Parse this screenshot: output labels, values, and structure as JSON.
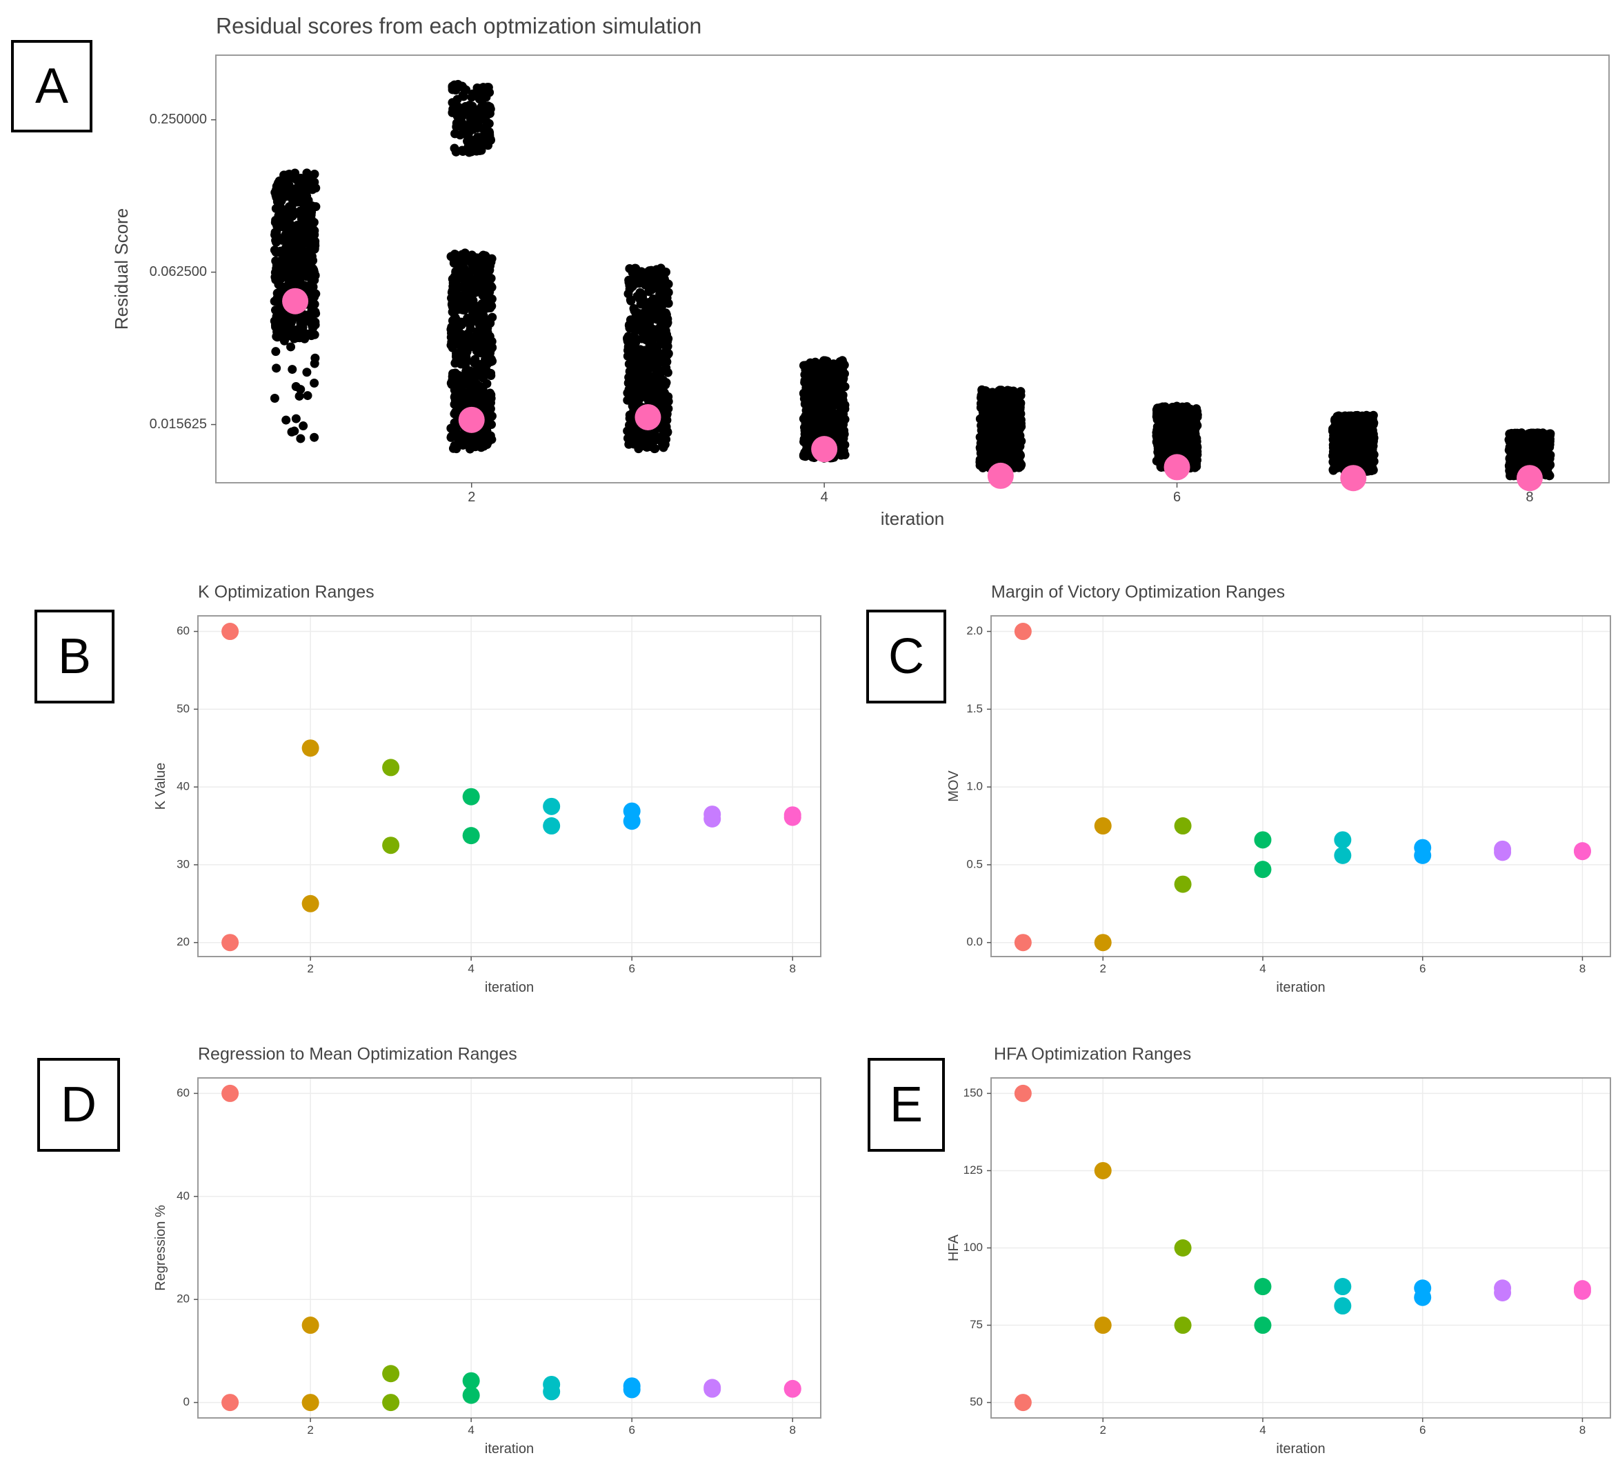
{
  "panel_labels": [
    "A",
    "B",
    "C",
    "D",
    "E"
  ],
  "colors": {
    "iterations": [
      "#F8766D",
      "#CD9600",
      "#7CAE00",
      "#00BE67",
      "#00BFC4",
      "#00A9FF",
      "#C77CFF",
      "#FF61CC"
    ],
    "jitter_points": "#000000",
    "best_point": "#FF69B4"
  },
  "chart_data": [
    {
      "id": "A",
      "type": "scatter",
      "title": "Residual scores from each optmization simulation",
      "xlabel": "iteration",
      "ylabel": "Residual Score",
      "y_scale": "log",
      "xlim": [
        0.55,
        8.45
      ],
      "ylim": [
        0.0092,
        0.45
      ],
      "xticks": [
        2,
        4,
        6,
        8
      ],
      "yticks": [
        0.015625,
        0.0625,
        0.25
      ],
      "ytick_labels": [
        "0.015625",
        "0.062500",
        "0.250000"
      ],
      "grid": false,
      "jitter_ranges": [
        {
          "x": 1,
          "low": 0.0135,
          "high": 0.155,
          "gap_below": 0.034
        },
        {
          "x": 2,
          "low": 0.0125,
          "high": 0.075,
          "upper_cluster": [
            0.185,
            0.345
          ]
        },
        {
          "x": 3,
          "low": 0.0125,
          "high": 0.065
        },
        {
          "x": 4,
          "low": 0.0115,
          "high": 0.028
        },
        {
          "x": 5,
          "low": 0.0105,
          "high": 0.0215
        },
        {
          "x": 6,
          "low": 0.0105,
          "high": 0.0185
        },
        {
          "x": 7,
          "low": 0.0102,
          "high": 0.017
        },
        {
          "x": 8,
          "low": 0.0098,
          "high": 0.0145
        }
      ],
      "best": [
        {
          "x": 1,
          "y": 0.048
        },
        {
          "x": 2,
          "y": 0.0163
        },
        {
          "x": 3,
          "y": 0.0167
        },
        {
          "x": 4,
          "y": 0.0125
        },
        {
          "x": 5,
          "y": 0.0098
        },
        {
          "x": 6,
          "y": 0.0106
        },
        {
          "x": 7,
          "y": 0.0096
        },
        {
          "x": 8,
          "y": 0.0096
        }
      ]
    },
    {
      "id": "B",
      "type": "scatter",
      "title": "K Optimization Ranges",
      "xlabel": "iteration",
      "ylabel": "K Value",
      "xlim": [
        0.6,
        8.35
      ],
      "ylim": [
        18.2,
        62
      ],
      "xticks": [
        2,
        4,
        6,
        8
      ],
      "yticks": [
        20,
        30,
        40,
        50,
        60
      ],
      "grid": true,
      "points": [
        {
          "x": 1,
          "low": 20,
          "high": 60
        },
        {
          "x": 2,
          "low": 25,
          "high": 45
        },
        {
          "x": 3,
          "low": 32.5,
          "high": 42.5
        },
        {
          "x": 4,
          "low": 33.75,
          "high": 38.75
        },
        {
          "x": 5,
          "low": 35,
          "high": 37.5
        },
        {
          "x": 6,
          "low": 35.6,
          "high": 36.9
        },
        {
          "x": 7,
          "low": 35.9,
          "high": 36.5
        },
        {
          "x": 8,
          "low": 36.1,
          "high": 36.4
        }
      ]
    },
    {
      "id": "C",
      "type": "scatter",
      "title": "Margin of Victory Optimization Ranges",
      "xlabel": "iteration",
      "ylabel": "MOV",
      "xlim": [
        0.6,
        8.35
      ],
      "ylim": [
        -0.09,
        2.1
      ],
      "xticks": [
        2,
        4,
        6,
        8
      ],
      "yticks": [
        0.0,
        0.5,
        1.0,
        1.5,
        2.0
      ],
      "ytick_labels": [
        "0.0",
        "0.5",
        "1.0",
        "1.5",
        "2.0"
      ],
      "grid": true,
      "points": [
        {
          "x": 1,
          "low": 0,
          "high": 2
        },
        {
          "x": 2,
          "low": 0,
          "high": 0.75
        },
        {
          "x": 3,
          "low": 0.375,
          "high": 0.75
        },
        {
          "x": 4,
          "low": 0.47,
          "high": 0.66
        },
        {
          "x": 5,
          "low": 0.56,
          "high": 0.66
        },
        {
          "x": 6,
          "low": 0.56,
          "high": 0.61
        },
        {
          "x": 7,
          "low": 0.58,
          "high": 0.6
        },
        {
          "x": 8,
          "low": 0.585,
          "high": 0.59
        }
      ]
    },
    {
      "id": "D",
      "type": "scatter",
      "title": "Regression to Mean Optimization Ranges",
      "xlabel": "iteration",
      "ylabel": "Regression %",
      "xlim": [
        0.6,
        8.35
      ],
      "ylim": [
        -3,
        63
      ],
      "xticks": [
        2,
        4,
        6,
        8
      ],
      "yticks": [
        0,
        20,
        40,
        60
      ],
      "grid": true,
      "points": [
        {
          "x": 1,
          "low": 0,
          "high": 60
        },
        {
          "x": 2,
          "low": 0,
          "high": 15
        },
        {
          "x": 3,
          "low": 0,
          "high": 5.6
        },
        {
          "x": 4,
          "low": 1.4,
          "high": 4.2
        },
        {
          "x": 5,
          "low": 2.1,
          "high": 3.5
        },
        {
          "x": 6,
          "low": 2.5,
          "high": 3.2
        },
        {
          "x": 7,
          "low": 2.6,
          "high": 2.9
        },
        {
          "x": 8,
          "low": 2.6,
          "high": 2.7
        }
      ]
    },
    {
      "id": "E",
      "type": "scatter",
      "title": "HFA Optimization Ranges",
      "xlabel": "iteration",
      "ylabel": "HFA",
      "xlim": [
        0.6,
        8.35
      ],
      "ylim": [
        45,
        155
      ],
      "xticks": [
        2,
        4,
        6,
        8
      ],
      "yticks": [
        50,
        75,
        100,
        125,
        150
      ],
      "grid": true,
      "points": [
        {
          "x": 1,
          "low": 50,
          "high": 150
        },
        {
          "x": 2,
          "low": 75,
          "high": 125
        },
        {
          "x": 3,
          "low": 75,
          "high": 100
        },
        {
          "x": 4,
          "low": 75,
          "high": 87.5
        },
        {
          "x": 5,
          "low": 81.25,
          "high": 87.5
        },
        {
          "x": 6,
          "low": 84,
          "high": 87
        },
        {
          "x": 7,
          "low": 85.5,
          "high": 87
        },
        {
          "x": 8,
          "low": 86,
          "high": 86.8
        }
      ]
    }
  ]
}
